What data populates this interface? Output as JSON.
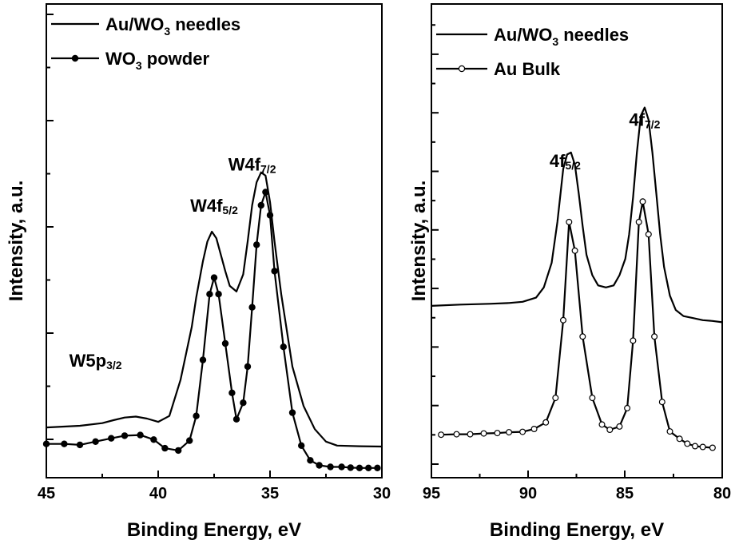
{
  "chart_data": [
    {
      "type": "line",
      "xlabel": "Binding Energy, eV",
      "ylabel": "Intensity, a.u.",
      "xlim": [
        45,
        30
      ],
      "ylim": [
        0,
        10
      ],
      "x_ticks": [
        "45",
        "40",
        "35",
        "30"
      ],
      "y_ticks_labeled": false,
      "legend": {
        "position": "top-left",
        "entries": [
          {
            "main": "Au/WO",
            "sub": "3",
            "rest": " needles",
            "marker": "none"
          },
          {
            "main": "WO",
            "sub": "3",
            "rest": " powder",
            "marker": "filled-circle"
          }
        ]
      },
      "annotations": [
        {
          "main": "W4f",
          "sub": "7/2",
          "x": 35.8,
          "y": 8.55
        },
        {
          "main": "W4f",
          "sub": "5/2",
          "x": 37.5,
          "y": 7.3
        },
        {
          "main": "W5p",
          "sub": "3/2",
          "x": 42.8,
          "y": 2.6
        }
      ],
      "series": [
        {
          "marker": "none",
          "x": [
            45,
            43.5,
            42.5,
            42,
            41.5,
            41,
            40.5,
            40,
            39.5,
            39,
            38.5,
            38.3,
            38,
            37.8,
            37.6,
            37.4,
            37.2,
            37,
            36.8,
            36.5,
            36.2,
            36,
            35.8,
            35.6,
            35.4,
            35.2,
            35,
            34.8,
            34.5,
            34,
            33.5,
            33,
            32.5,
            32,
            31,
            30
          ],
          "y": [
            0.75,
            0.8,
            0.88,
            0.97,
            1.05,
            1.08,
            1.02,
            0.92,
            1.1,
            2.2,
            3.8,
            4.7,
            5.8,
            6.4,
            6.7,
            6.5,
            6.0,
            5.5,
            5.05,
            4.88,
            5.4,
            6.4,
            7.5,
            8.2,
            8.5,
            8.4,
            7.6,
            6.4,
            4.8,
            2.6,
            1.4,
            0.7,
            0.32,
            0.2,
            0.18,
            0.17
          ]
        },
        {
          "marker": "filled-circle",
          "x": [
            45,
            44.2,
            43.5,
            42.8,
            42.1,
            41.5,
            40.8,
            40.2,
            39.7,
            39.1,
            38.6,
            38.3,
            38.0,
            37.7,
            37.5,
            37.3,
            37.0,
            36.7,
            36.5,
            36.2,
            36.0,
            35.8,
            35.6,
            35.4,
            35.2,
            35.0,
            34.8,
            34.4,
            34.0,
            33.6,
            33.2,
            32.8,
            32.3,
            31.8,
            31.4,
            31.0,
            30.6,
            30.2
          ],
          "y": [
            0.25,
            0.25,
            0.22,
            0.32,
            0.42,
            0.5,
            0.52,
            0.38,
            0.12,
            0.05,
            0.35,
            1.1,
            2.8,
            4.8,
            5.3,
            4.8,
            3.3,
            1.8,
            1.0,
            1.5,
            2.6,
            4.4,
            6.3,
            7.5,
            7.9,
            7.2,
            5.5,
            3.2,
            1.2,
            0.2,
            -0.25,
            -0.4,
            -0.45,
            -0.45,
            -0.47,
            -0.48,
            -0.48,
            -0.48
          ]
        }
      ]
    },
    {
      "type": "line",
      "xlabel": "Binding Energy, eV",
      "ylabel": "Intensity, a.u.",
      "xlim": [
        95,
        80
      ],
      "ylim": [
        0,
        10
      ],
      "x_ticks": [
        "95",
        "90",
        "85",
        "80"
      ],
      "y_ticks_labeled": false,
      "legend": {
        "position": "top-left",
        "entries": [
          {
            "main": "Au/WO",
            "sub": "3",
            "rest": " needles",
            "marker": "none"
          },
          {
            "main": "Au Bulk",
            "sub": "",
            "rest": "",
            "marker": "open-circle"
          }
        ]
      },
      "annotations": [
        {
          "main": "4f",
          "sub": "5/2",
          "x": 88.1,
          "y": 7.25
        },
        {
          "main": "4f",
          "sub": "7/2",
          "x": 84.0,
          "y": 8.25
        }
      ],
      "series": [
        {
          "marker": "none",
          "x": [
            95,
            93.5,
            92,
            91,
            90.3,
            89.6,
            89.2,
            88.8,
            88.5,
            88.2,
            88.0,
            87.8,
            87.6,
            87.4,
            87.2,
            87.0,
            86.7,
            86.4,
            86.0,
            85.6,
            85.3,
            85.0,
            84.8,
            84.6,
            84.4,
            84.2,
            84.0,
            83.8,
            83.6,
            83.4,
            83.2,
            83.0,
            82.7,
            82.4,
            82.0,
            81.5,
            81.0,
            80.5,
            80.0
          ],
          "y": [
            3.85,
            3.88,
            3.9,
            3.92,
            3.95,
            4.05,
            4.3,
            4.9,
            5.9,
            7.2,
            7.55,
            7.6,
            7.3,
            6.6,
            5.8,
            5.1,
            4.6,
            4.35,
            4.3,
            4.35,
            4.6,
            5.0,
            5.6,
            6.5,
            7.6,
            8.5,
            8.7,
            8.4,
            7.6,
            6.6,
            5.6,
            4.8,
            4.1,
            3.75,
            3.6,
            3.55,
            3.5,
            3.48,
            3.45
          ]
        },
        {
          "marker": "open-circle",
          "x": [
            94.5,
            93.7,
            93.0,
            92.3,
            91.6,
            91.0,
            90.3,
            89.7,
            89.1,
            88.6,
            88.2,
            87.9,
            87.6,
            87.2,
            86.7,
            86.2,
            85.8,
            85.3,
            84.9,
            84.6,
            84.3,
            84.1,
            83.8,
            83.5,
            83.1,
            82.7,
            82.2,
            81.8,
            81.4,
            81.0,
            80.5
          ],
          "y": [
            0.7,
            0.71,
            0.71,
            0.73,
            0.74,
            0.76,
            0.77,
            0.84,
            1.0,
            1.6,
            3.5,
            5.9,
            5.2,
            3.1,
            1.6,
            0.95,
            0.82,
            0.9,
            1.35,
            3.0,
            5.9,
            6.4,
            5.6,
            3.1,
            1.5,
            0.78,
            0.6,
            0.48,
            0.42,
            0.4,
            0.38
          ]
        }
      ]
    }
  ]
}
